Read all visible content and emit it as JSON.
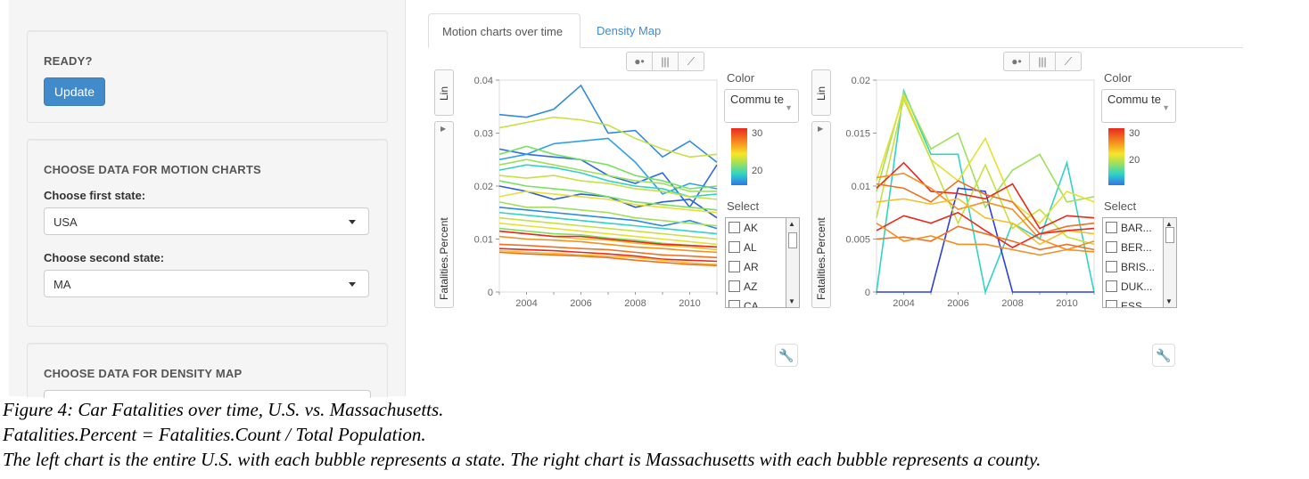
{
  "sidebar": {
    "ready": {
      "title": "READY?",
      "button": "Update"
    },
    "motion": {
      "title": "CHOOSE DATA FOR MOTION CHARTS",
      "first_label": "Choose first state:",
      "first_value": "USA",
      "second_label": "Choose second state:",
      "second_value": "MA"
    },
    "density": {
      "title": "CHOOSE DATA FOR DENSITY MAP"
    }
  },
  "tabs": {
    "active": "Motion charts over time",
    "inactive": "Density Map"
  },
  "controls": {
    "y_axis_label": "Fatalities.Percent",
    "lin_label": "Lin",
    "color_title": "Color",
    "color_value": "Commu te",
    "select_title": "Select",
    "left_colorbar_ticks": [
      "30",
      "20"
    ],
    "right_colorbar_ticks": [
      "30",
      "20"
    ],
    "left_list": [
      "AK",
      "AL",
      "AR",
      "AZ",
      "CA"
    ],
    "right_list": [
      "BAR...",
      "BER...",
      "BRIS...",
      "DUK...",
      "ESS..."
    ]
  },
  "colors": {
    "tab_link": "#428bca",
    "button": "#428bca"
  },
  "chart_data": [
    {
      "type": "line",
      "title": "",
      "xlabel": "",
      "ylabel": "Fatalities.Percent",
      "x": [
        2003,
        2004,
        2005,
        2006,
        2007,
        2008,
        2009,
        2010,
        2011
      ],
      "xticks": [
        "2004",
        "2006",
        "2008",
        "2010"
      ],
      "yticks": [
        "0",
        "0.01",
        "0.02",
        "0.03",
        "0.04"
      ],
      "ylim": [
        0,
        0.04
      ],
      "xlim": [
        2003,
        2011
      ],
      "series": [
        {
          "name": "s1",
          "color": "#2f8ae0",
          "values": [
            0.0335,
            0.033,
            0.0345,
            0.039,
            0.03,
            0.0305,
            0.0255,
            0.0285,
            0.0245
          ]
        },
        {
          "name": "s2",
          "color": "#c8e040",
          "values": [
            0.031,
            0.032,
            0.033,
            0.0325,
            0.0315,
            0.029,
            0.027,
            0.0255,
            0.026
          ]
        },
        {
          "name": "s3",
          "color": "#2f6ae8",
          "values": [
            0.027,
            0.026,
            0.0255,
            0.025,
            0.022,
            0.0205,
            0.0225,
            0.016,
            0.024
          ]
        },
        {
          "name": "s4",
          "color": "#2fa0e8",
          "values": [
            0.025,
            0.026,
            0.028,
            0.0285,
            0.029,
            0.0245,
            0.0185,
            0.0205,
            0.0195
          ]
        },
        {
          "name": "s5",
          "color": "#7ae060",
          "values": [
            0.026,
            0.0275,
            0.026,
            0.025,
            0.024,
            0.022,
            0.021,
            0.0195,
            0.02
          ]
        },
        {
          "name": "s6",
          "color": "#9ee05a",
          "values": [
            0.024,
            0.025,
            0.024,
            0.023,
            0.022,
            0.021,
            0.0205,
            0.019,
            0.019
          ]
        },
        {
          "name": "s7",
          "color": "#2fd4c6",
          "values": [
            0.023,
            0.024,
            0.0235,
            0.0225,
            0.021,
            0.02,
            0.0195,
            0.018,
            0.0185
          ]
        },
        {
          "name": "s8",
          "color": "#c8e040",
          "values": [
            0.022,
            0.0215,
            0.022,
            0.021,
            0.0205,
            0.0195,
            0.019,
            0.018,
            0.0175
          ]
        },
        {
          "name": "s9",
          "color": "#2f60d0",
          "values": [
            0.02,
            0.019,
            0.0175,
            0.0185,
            0.018,
            0.016,
            0.017,
            0.0175,
            0.014
          ]
        },
        {
          "name": "s10",
          "color": "#7ae060",
          "values": [
            0.021,
            0.02,
            0.0195,
            0.019,
            0.018,
            0.017,
            0.0165,
            0.016,
            0.0155
          ]
        },
        {
          "name": "s11",
          "color": "#e8e030",
          "values": [
            0.018,
            0.019,
            0.0185,
            0.018,
            0.0175,
            0.0165,
            0.016,
            0.0155,
            0.015
          ]
        },
        {
          "name": "s12",
          "color": "#2f8ae0",
          "values": [
            0.016,
            0.0155,
            0.015,
            0.0145,
            0.014,
            0.0135,
            0.0125,
            0.0135,
            0.012
          ]
        },
        {
          "name": "s13",
          "color": "#9ee05a",
          "values": [
            0.017,
            0.016,
            0.016,
            0.0155,
            0.015,
            0.014,
            0.0135,
            0.013,
            0.0125
          ]
        },
        {
          "name": "s14",
          "color": "#2fd4c6",
          "values": [
            0.015,
            0.0145,
            0.014,
            0.0135,
            0.013,
            0.0125,
            0.012,
            0.0115,
            0.011
          ]
        },
        {
          "name": "s15",
          "color": "#c8e040",
          "values": [
            0.014,
            0.0135,
            0.013,
            0.0125,
            0.012,
            0.0115,
            0.011,
            0.0105,
            0.01
          ]
        },
        {
          "name": "s16",
          "color": "#e8e030",
          "values": [
            0.013,
            0.0125,
            0.012,
            0.0115,
            0.011,
            0.0105,
            0.01,
            0.0095,
            0.009
          ]
        },
        {
          "name": "s17",
          "color": "#7ae060",
          "values": [
            0.012,
            0.0115,
            0.011,
            0.0108,
            0.0102,
            0.0098,
            0.0092,
            0.0088,
            0.0085
          ]
        },
        {
          "name": "s18",
          "color": "#f5c030",
          "values": [
            0.0115,
            0.011,
            0.0105,
            0.01,
            0.0098,
            0.0092,
            0.0088,
            0.0085,
            0.008
          ]
        },
        {
          "name": "s19",
          "color": "#f58f1f",
          "values": [
            0.0105,
            0.01,
            0.0098,
            0.0095,
            0.009,
            0.0085,
            0.0082,
            0.0078,
            0.0075
          ]
        },
        {
          "name": "s20",
          "color": "#e8291f",
          "values": [
            0.0115,
            0.011,
            0.0105,
            0.0105,
            0.01,
            0.0095,
            0.009,
            0.0088,
            0.0085
          ]
        },
        {
          "name": "s21",
          "color": "#f07020",
          "values": [
            0.009,
            0.0088,
            0.0085,
            0.0082,
            0.008,
            0.0075,
            0.007,
            0.0068,
            0.0065
          ]
        },
        {
          "name": "s22",
          "color": "#e8291f",
          "values": [
            0.0082,
            0.008,
            0.0078,
            0.0075,
            0.0072,
            0.0068,
            0.0062,
            0.006,
            0.0058
          ]
        },
        {
          "name": "s23",
          "color": "#f5c030",
          "values": [
            0.0078,
            0.0075,
            0.0073,
            0.007,
            0.0068,
            0.0065,
            0.006,
            0.0055,
            0.0052
          ]
        },
        {
          "name": "s24",
          "color": "#f07020",
          "values": [
            0.0075,
            0.0072,
            0.007,
            0.0068,
            0.0065,
            0.006,
            0.0056,
            0.0052,
            0.005
          ]
        }
      ]
    },
    {
      "type": "line",
      "title": "",
      "xlabel": "",
      "ylabel": "Fatalities.Percent",
      "x": [
        2003,
        2004,
        2005,
        2006,
        2007,
        2008,
        2009,
        2010,
        2011
      ],
      "xticks": [
        "2004",
        "2006",
        "2008",
        "2010"
      ],
      "yticks": [
        "0",
        "0.005",
        "0.01",
        "0.015",
        "0.02"
      ],
      "ylim": [
        0,
        0.02
      ],
      "xlim": [
        2003,
        2011
      ],
      "series": [
        {
          "name": "c1",
          "color": "#2fd4c6",
          "values": [
            0,
            0.019,
            0.013,
            0.013,
            0,
            0.0065,
            0.005,
            0.0122,
            0
          ]
        },
        {
          "name": "c2",
          "color": "#2f40d8",
          "values": [
            0,
            0,
            0,
            0.0098,
            0.0095,
            0,
            0,
            0,
            0
          ]
        },
        {
          "name": "c3",
          "color": "#9ee05a",
          "values": [
            0.0095,
            0.0188,
            0.0135,
            0.015,
            0.008,
            0.0115,
            0.013,
            0.0085,
            0.009
          ]
        },
        {
          "name": "c4",
          "color": "#e8e030",
          "values": [
            0.0105,
            0.0185,
            0.0125,
            0.0105,
            0.0145,
            0.0085,
            0.0065,
            0.0095,
            0.0085
          ]
        },
        {
          "name": "c5",
          "color": "#c8e040",
          "values": [
            0.007,
            0.0182,
            0.0125,
            0.0065,
            0.012,
            0.006,
            0.0078,
            0.0052,
            0.0045
          ]
        },
        {
          "name": "c6",
          "color": "#e8291f",
          "values": [
            0.0098,
            0.0122,
            0.0095,
            0.0093,
            0.0088,
            0.0102,
            0.006,
            0.0072,
            0.007
          ]
        },
        {
          "name": "c7",
          "color": "#f58f1f",
          "values": [
            0.0108,
            0.0112,
            0.0098,
            0.0078,
            0.0085,
            0.0078,
            0.005,
            0.004,
            0.0048
          ]
        },
        {
          "name": "c8",
          "color": "#f07020",
          "values": [
            0.0102,
            0.0098,
            0.0085,
            0.0105,
            0.0092,
            0.0085,
            0.0055,
            0.0062,
            0.0065
          ]
        },
        {
          "name": "c9",
          "color": "#f5c030",
          "values": [
            0.0085,
            0.0088,
            0.0083,
            0.0088,
            0.007,
            0.0065,
            0.0045,
            0.0058,
            0.0055
          ]
        },
        {
          "name": "c10",
          "color": "#e8291f",
          "values": [
            0.0058,
            0.0072,
            0.0065,
            0.0075,
            0.0058,
            0.0042,
            0.0055,
            0.0058,
            0.006
          ]
        },
        {
          "name": "c11",
          "color": "#f07020",
          "values": [
            0.005,
            0.0052,
            0.0048,
            0.0062,
            0.0055,
            0.0048,
            0.004,
            0.0045,
            0.004
          ]
        },
        {
          "name": "c12",
          "color": "#f58f1f",
          "values": [
            0.0065,
            0.0048,
            0.0053,
            0.0045,
            0.0045,
            0.004,
            0.0035,
            0.004,
            0.0038
          ]
        }
      ]
    }
  ],
  "caption": {
    "line1": "Figure 4: Car Fatalities over time, U.S. vs. Massachusetts.",
    "line2": "Fatalities.Percent = Fatalities.Count / Total Population.",
    "line3": "The left chart is the entire U.S. with each bubble represents a state. The right chart is Massachusetts with each bubble represents a county."
  }
}
